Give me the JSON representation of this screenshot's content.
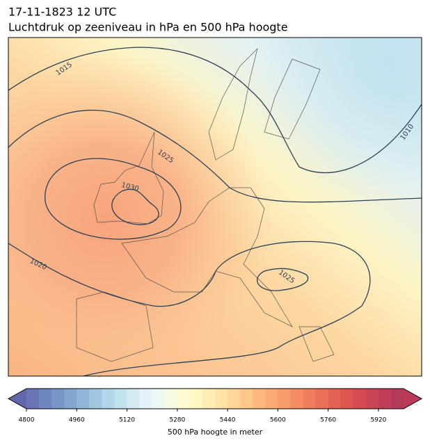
{
  "header": {
    "date": "17-11-1823 12 UTC",
    "title": "Luchtdruk op zeeniveau in hPa en 500 hPa hoogte"
  },
  "map": {
    "isobar_labels": [
      1015,
      1010,
      1025,
      1030,
      1020,
      1025
    ]
  },
  "colorbar": {
    "label": "500 hPa hoogte in meter",
    "lim": [
      4800,
      6000
    ],
    "ticks": [
      4800,
      4960,
      5120,
      5280,
      5440,
      5600,
      5760,
      5920
    ],
    "under_color": "#6068ab",
    "over_color": "#b83a58",
    "colors": [
      "#6b74b5",
      "#6f85bd",
      "#7896c6",
      "#82a7cf",
      "#8fb8d8",
      "#9fc8e0",
      "#b0d6e8",
      "#c2e1ee",
      "#d3eaf3",
      "#e2f2f7",
      "#eef8f3",
      "#f7fbe0",
      "#fefdd0",
      "#fff6c2",
      "#feedb5",
      "#fee3a6",
      "#fdd698",
      "#fdc88a",
      "#fcb97e",
      "#fbaa74",
      "#f99c6c",
      "#f58d64",
      "#f07e5d",
      "#ea7058",
      "#e36253",
      "#dc5750",
      "#d44c51",
      "#ca4553",
      "#c13f56",
      "#b53a59"
    ]
  }
}
